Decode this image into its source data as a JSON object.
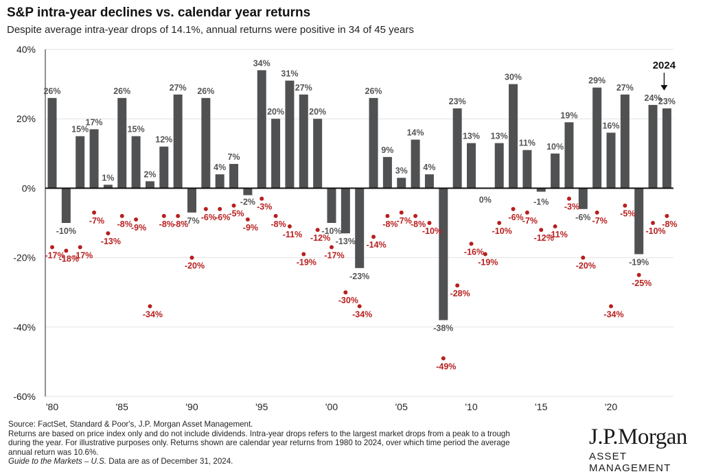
{
  "header": {
    "title": "S&P intra-year declines vs. calendar year returns",
    "subtitle": "Despite average intra-year drops of 14.1%, annual returns were positive in 34 of 45 years"
  },
  "chart_data": {
    "type": "bar",
    "years": [
      1980,
      1981,
      1982,
      1983,
      1984,
      1985,
      1986,
      1987,
      1988,
      1989,
      1990,
      1991,
      1992,
      1993,
      1994,
      1995,
      1996,
      1997,
      1998,
      1999,
      2000,
      2001,
      2002,
      2003,
      2004,
      2005,
      2006,
      2007,
      2008,
      2009,
      2010,
      2011,
      2012,
      2013,
      2014,
      2015,
      2016,
      2017,
      2018,
      2019,
      2020,
      2021,
      2022,
      2023,
      2024
    ],
    "series": [
      {
        "name": "calendar year returns",
        "values": [
          26,
          -10,
          15,
          17,
          1,
          26,
          15,
          2,
          12,
          27,
          -7,
          26,
          4,
          7,
          -2,
          34,
          20,
          31,
          27,
          20,
          -10,
          -13,
          -23,
          26,
          9,
          3,
          14,
          4,
          -38,
          23,
          13,
          0,
          13,
          30,
          11,
          -1,
          10,
          19,
          -6,
          29,
          16,
          27,
          -19,
          24,
          23
        ],
        "labels": [
          "26%",
          "-10%",
          "15%",
          "17%",
          "1%",
          "26%",
          "15%",
          "2%",
          "12%",
          "27%",
          "-7%",
          "26%",
          "4%",
          "7%",
          "-2%",
          "34%",
          "20%",
          "31%",
          "27%",
          "20%",
          "-10%",
          "-13%",
          "-23%",
          "26%",
          "9%",
          "3%",
          "14%",
          "4%",
          "-38%",
          "23%",
          "13%",
          "0%",
          "13%",
          "30%",
          "11%",
          "-1%",
          "10%",
          "19%",
          "-6%",
          "29%",
          "16%",
          "27%",
          "-19%",
          "24%",
          "23%"
        ],
        "color": "#505153"
      },
      {
        "name": "intra-year declines",
        "values": [
          -17,
          -18,
          -17,
          -7,
          -13,
          -8,
          -9,
          -34,
          -8,
          -8,
          -20,
          -6,
          -6,
          -5,
          -9,
          -3,
          -8,
          -11,
          -19,
          -12,
          -17,
          -30,
          -34,
          -14,
          -8,
          -7,
          -8,
          -10,
          -49,
          -28,
          -16,
          -19,
          -10,
          -6,
          -7,
          -12,
          -11,
          -3,
          -20,
          -7,
          -34,
          -5,
          -25,
          -10,
          -8
        ],
        "labels": [
          "-17%",
          "-18%",
          "-17%",
          "-7%",
          "-13%",
          "-8%",
          "-9%",
          "-34%",
          "-8%",
          "-8%",
          "-20%",
          "-6%",
          "-6%",
          "-5%",
          "-9%",
          "-3%",
          "-8%",
          "-11%",
          "-19%",
          "-12%",
          "-17%",
          "-30%",
          "-34%",
          "-14%",
          "-8%",
          "-7%",
          "-8%",
          "-10%",
          "-49%",
          "-28%",
          "-16%",
          "-19%",
          "-10%",
          "-6%",
          "-7%",
          "-12%",
          "-11%",
          "-3%",
          "-20%",
          "-7%",
          "-34%",
          "-5%",
          "-25%",
          "-10%",
          "-8%"
        ],
        "color": "#b81f1f"
      }
    ],
    "x_tick_labels": [
      {
        "year": 1980,
        "label": "'80"
      },
      {
        "year": 1985,
        "label": "'85"
      },
      {
        "year": 1990,
        "label": "'90"
      },
      {
        "year": 1995,
        "label": "'95"
      },
      {
        "year": 2000,
        "label": "'00"
      },
      {
        "year": 2005,
        "label": "'05"
      },
      {
        "year": 2010,
        "label": "'10"
      },
      {
        "year": 2015,
        "label": "'15"
      },
      {
        "year": 2020,
        "label": "'20"
      }
    ],
    "y_ticks": [
      40,
      20,
      0,
      -20,
      -40,
      -60
    ],
    "y_tick_labels": [
      "40%",
      "20%",
      "0%",
      "-20%",
      "-40%",
      "-60%"
    ],
    "ylim": [
      -60,
      40
    ],
    "grid": true,
    "annotation": {
      "text": "2024",
      "year": 2024
    }
  },
  "footnotes": {
    "source": "Source: FactSet, Standard & Poor's, J.P. Morgan Asset Management.",
    "line1": "Returns are based on price index only and do not include dividends. Intra-year drops refers to the largest market drops from a peak to a trough",
    "line2": "during the year. For illustrative purposes only. Returns shown are calendar year returns from 1980 to 2024, over which time period the average",
    "line3": "annual return was 10.6%.",
    "guide_title": "Guide to the Markets – U.S.",
    "guide_rest": " Data are as of December 31, 2024."
  },
  "logo": {
    "name": "J.P.Morgan",
    "sub": "ASSET MANAGEMENT"
  }
}
